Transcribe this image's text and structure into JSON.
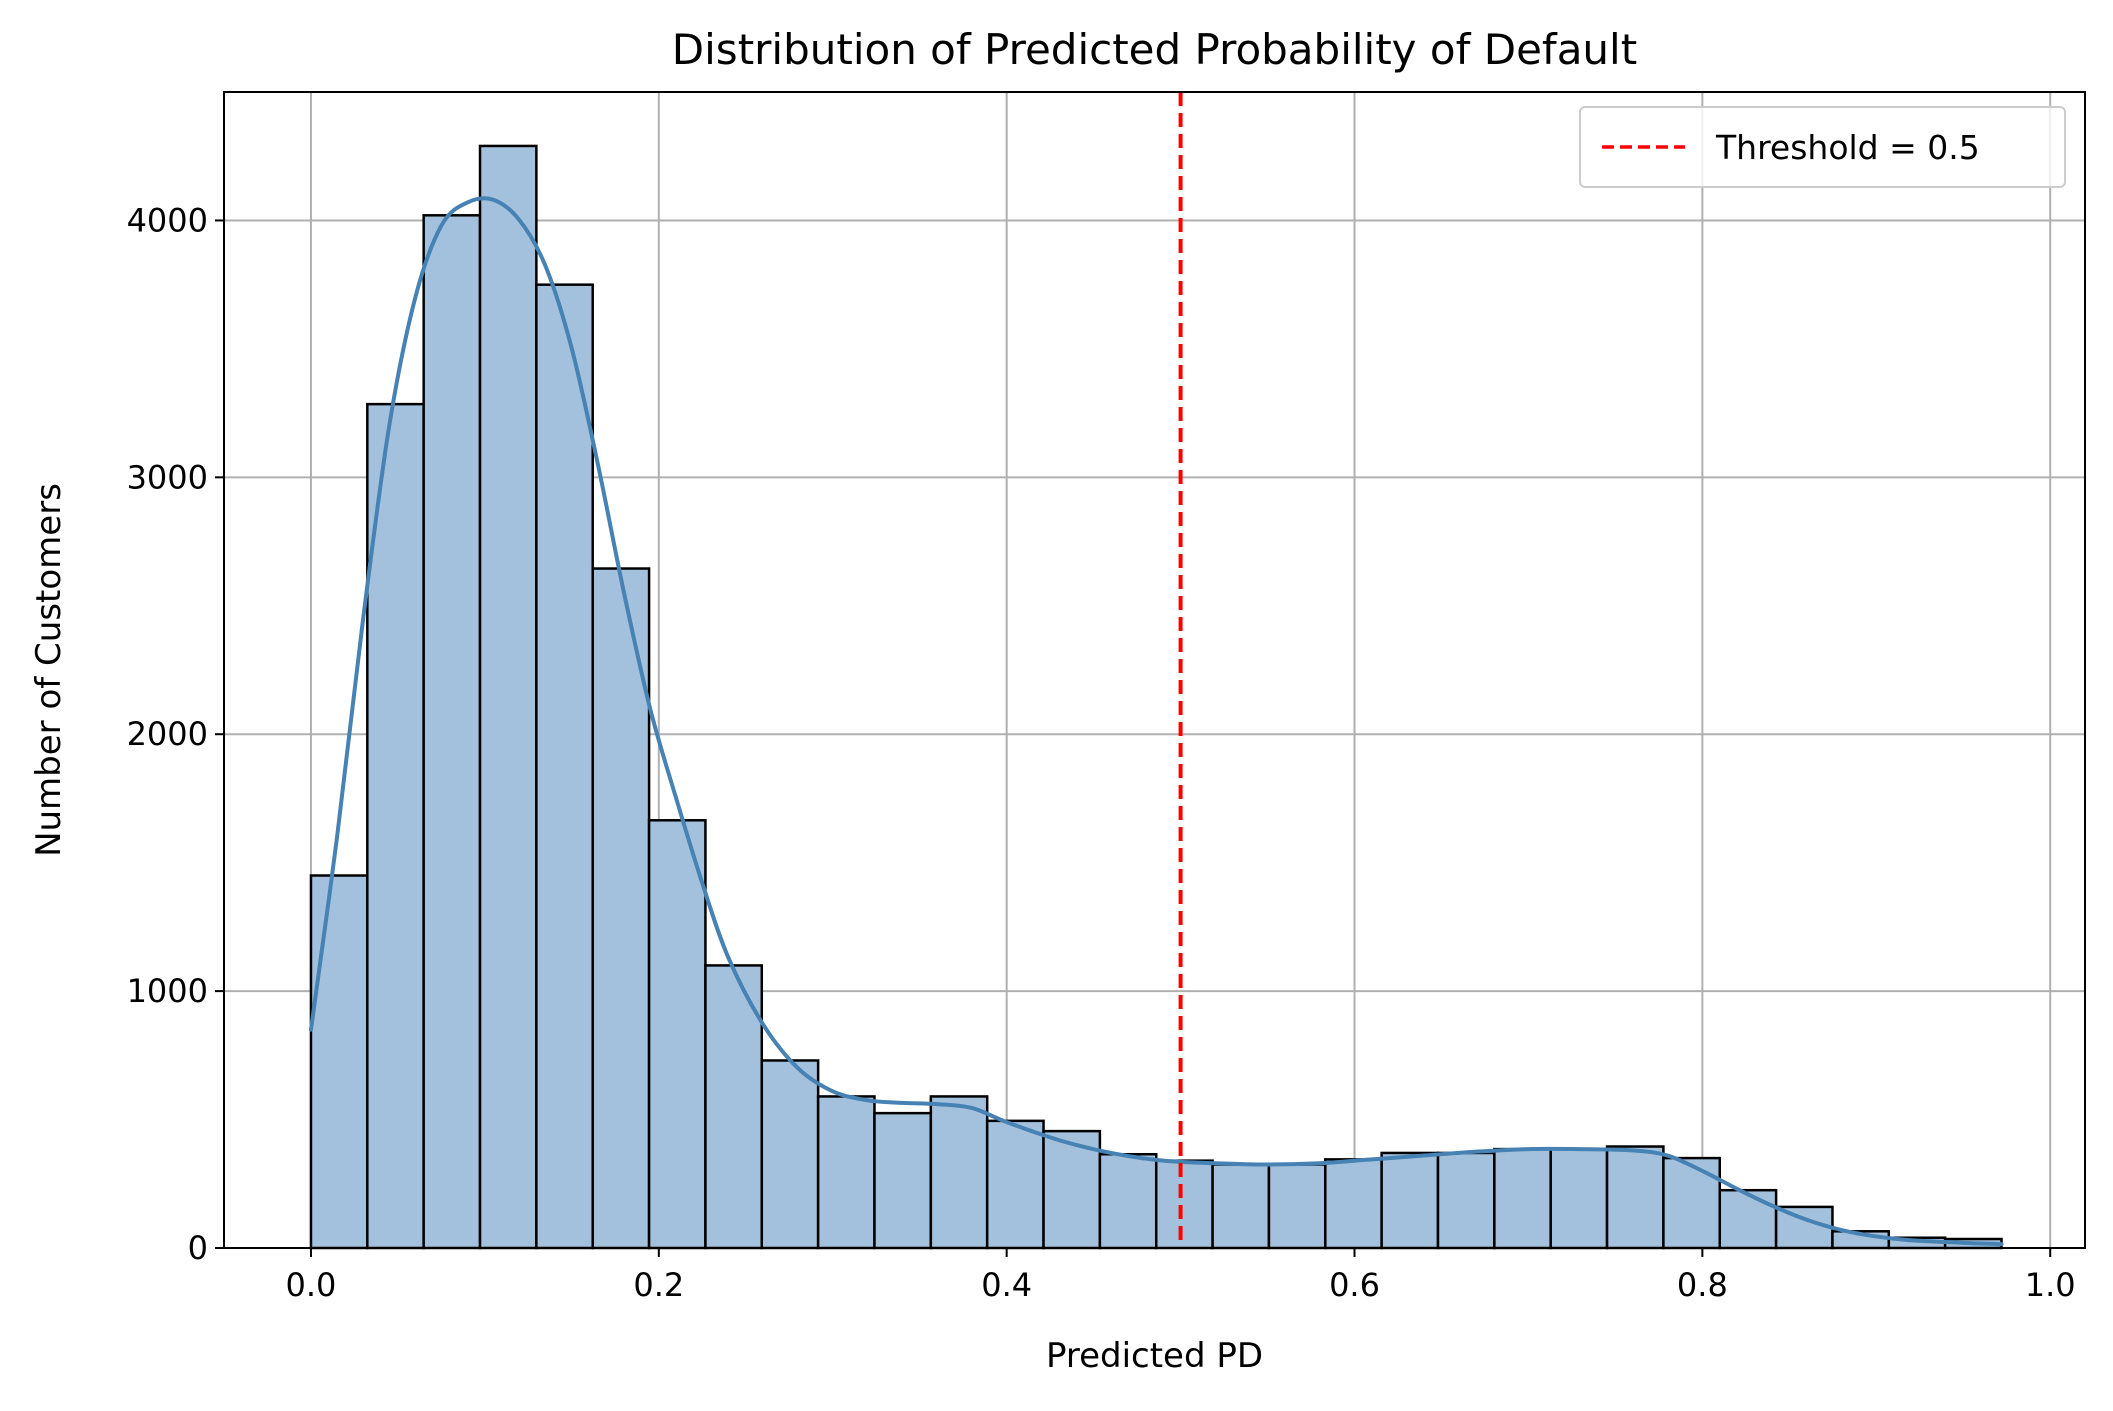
{
  "chart_data": {
    "type": "bar",
    "title": "Distribution of Predicted Probability of Default",
    "xlabel": "Predicted PD",
    "ylabel": "Number of Customers",
    "xlim": [
      -0.05,
      1.02
    ],
    "ylim": [
      0,
      4500
    ],
    "xticks": [
      0.0,
      0.2,
      0.4,
      0.6,
      0.8,
      1.0
    ],
    "xtick_labels": [
      "0.0",
      "0.2",
      "0.4",
      "0.6",
      "0.8",
      "1.0"
    ],
    "yticks": [
      0,
      1000,
      2000,
      3000,
      4000
    ],
    "ytick_labels": [
      "0",
      "1000",
      "2000",
      "3000",
      "4000"
    ],
    "grid": true,
    "bin_start": 0.0,
    "bin_width": 0.0324,
    "values": [
      1450,
      3285,
      4020,
      4290,
      3750,
      2645,
      1665,
      1100,
      730,
      590,
      525,
      590,
      495,
      455,
      365,
      340,
      325,
      325,
      345,
      370,
      370,
      385,
      385,
      395,
      350,
      225,
      160,
      65,
      40,
      35
    ],
    "kde": {
      "x": [
        0.0,
        0.015,
        0.03,
        0.045,
        0.06,
        0.075,
        0.09,
        0.105,
        0.12,
        0.135,
        0.15,
        0.165,
        0.18,
        0.195,
        0.21,
        0.225,
        0.24,
        0.26,
        0.28,
        0.3,
        0.32,
        0.34,
        0.36,
        0.38,
        0.4,
        0.43,
        0.46,
        0.49,
        0.52,
        0.55,
        0.58,
        0.61,
        0.64,
        0.67,
        0.7,
        0.73,
        0.76,
        0.78,
        0.8,
        0.82,
        0.84,
        0.86,
        0.88,
        0.9,
        0.92,
        0.95,
        0.972
      ],
      "y": [
        850,
        1600,
        2450,
        3200,
        3700,
        3980,
        4070,
        4080,
        4000,
        3820,
        3500,
        3050,
        2550,
        2100,
        1750,
        1420,
        1130,
        870,
        700,
        610,
        575,
        565,
        560,
        545,
        490,
        420,
        370,
        340,
        330,
        325,
        330,
        345,
        360,
        375,
        385,
        385,
        380,
        360,
        300,
        230,
        165,
        110,
        70,
        45,
        30,
        20,
        15
      ]
    },
    "threshold": {
      "x": 0.5,
      "label": "Threshold = 0.5"
    },
    "colors": {
      "bar_fill": "#a3c1dc",
      "bar_edge": "#000000",
      "kde_line": "#4682b4",
      "threshold": "#ff0000",
      "grid": "#b0b0b0"
    }
  }
}
